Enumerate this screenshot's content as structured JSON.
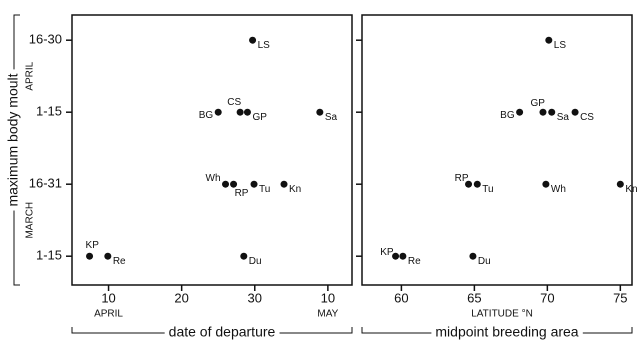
{
  "chart_data": [
    {
      "type": "scatter",
      "y_label": "maximum body moult",
      "x_label": "date of departure",
      "y_groups": [
        "MARCH",
        "APRIL"
      ],
      "x_sublabels": [
        {
          "value": 10,
          "label": "APRIL"
        },
        {
          "value": 40,
          "label": "MAY"
        }
      ],
      "xlim": [
        5,
        43.3
      ],
      "ylim": [
        0.6,
        4.35
      ],
      "xticks": [
        10,
        20,
        30,
        {
          "value": 40,
          "label": "10"
        }
      ],
      "yticks": [
        {
          "value": 1,
          "label": "1-15"
        },
        {
          "value": 2,
          "label": "16-31"
        },
        {
          "value": 3,
          "label": "1-15"
        },
        {
          "value": 4,
          "label": "16-30"
        }
      ],
      "series": [
        {
          "name": null,
          "color": "#111111",
          "labels": [
            "KP",
            "Re",
            "BG",
            "CS",
            "GP",
            "LS",
            "Sa",
            "Wh",
            "RP",
            "Tu",
            "Kn",
            "Du"
          ],
          "x": [
            7.4,
            9.9,
            25,
            28,
            29,
            29.7,
            38.9,
            26,
            27.1,
            29.9,
            34,
            28.5
          ],
          "values": [
            1,
            1,
            3,
            3,
            3,
            4,
            3,
            2,
            2,
            2,
            2,
            1
          ]
        }
      ]
    },
    {
      "type": "scatter",
      "x_label": "midpoint breeding area",
      "x_unit": "LATITUDE °N",
      "xlim": [
        57.3,
        75.8
      ],
      "ylim": [
        0.6,
        4.35
      ],
      "xticks": [
        60,
        65,
        70,
        75
      ],
      "yticks": [
        1,
        2,
        3,
        4
      ],
      "series": [
        {
          "name": null,
          "color": "#111111",
          "labels": [
            "KP",
            "Re",
            "Du",
            "RP",
            "Tu",
            "Wh",
            "Kn",
            "BG",
            "GP",
            "Sa",
            "CS",
            "LS"
          ],
          "x": [
            59.6,
            60.1,
            64.9,
            64.6,
            65.2,
            69.9,
            75,
            68.1,
            69.7,
            70.3,
            71.9,
            70.1
          ],
          "values": [
            1,
            1,
            1,
            2,
            2,
            2,
            2,
            3,
            3,
            3,
            3,
            4
          ]
        }
      ]
    }
  ]
}
